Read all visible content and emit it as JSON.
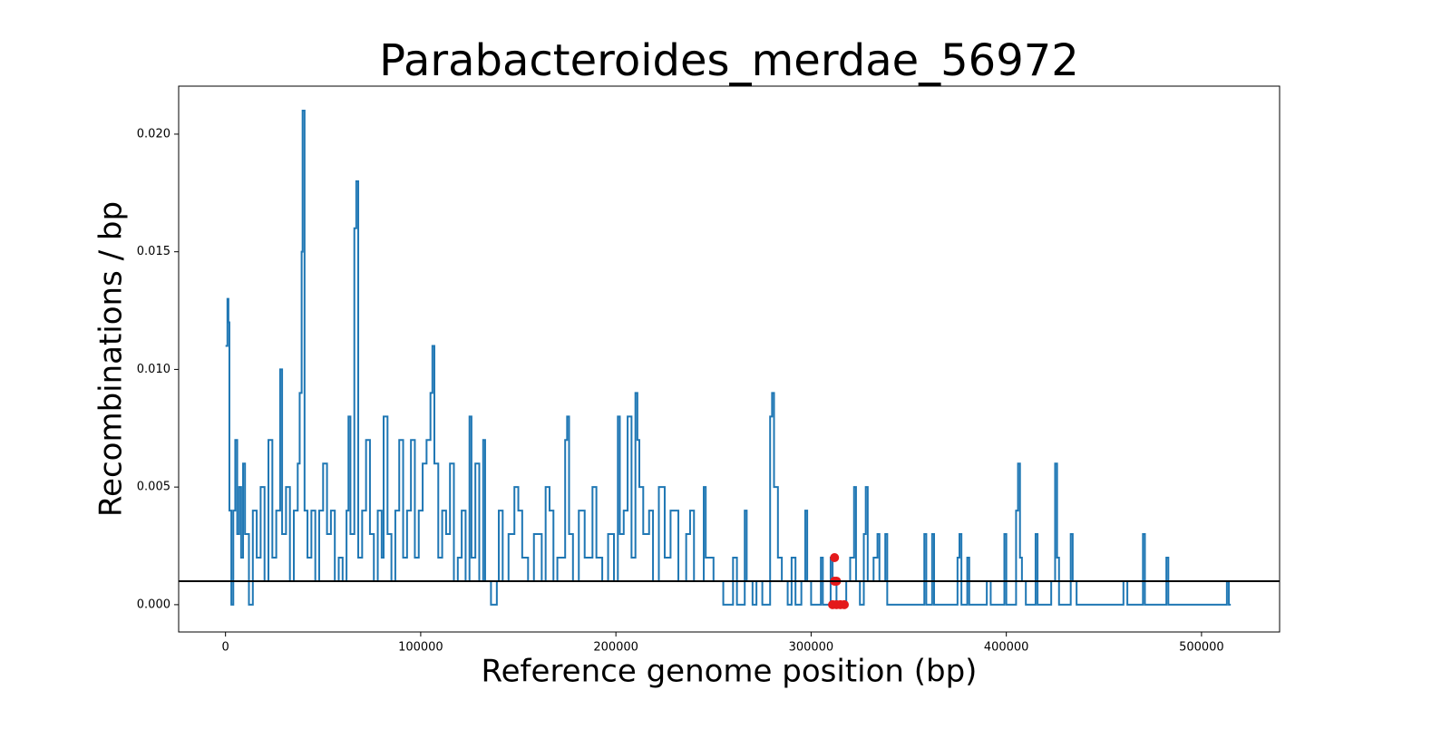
{
  "chart_data": {
    "type": "step",
    "title": "Parabacteroides_merdae_56972",
    "xlabel": "Reference genome position (bp)",
    "ylabel": "Recombinations / bp",
    "color": "#1f77b4",
    "x": [
      0,
      1000,
      1500,
      2000,
      3000,
      4000,
      5000,
      6000,
      7000,
      8000,
      9000,
      10000,
      12000,
      14000,
      16000,
      18000,
      20000,
      22000,
      24000,
      26000,
      28000,
      29000,
      31000,
      33000,
      35000,
      37000,
      38000,
      39000,
      39500,
      40500,
      42000,
      44000,
      46000,
      48000,
      50000,
      52000,
      54000,
      56000,
      58000,
      60000,
      62000,
      63000,
      64000,
      66000,
      67000,
      68000,
      70000,
      72000,
      74000,
      76000,
      78000,
      80000,
      81000,
      83000,
      85000,
      87000,
      89000,
      91000,
      93000,
      95000,
      97000,
      99000,
      101000,
      103000,
      105000,
      106000,
      107000,
      109000,
      111000,
      113000,
      115000,
      117000,
      119000,
      121000,
      123000,
      125000,
      126000,
      128000,
      130000,
      132000,
      133000,
      136000,
      139000,
      140000,
      142000,
      145000,
      148000,
      150000,
      152000,
      155000,
      158000,
      162000,
      164000,
      166000,
      168000,
      170000,
      174000,
      175000,
      176000,
      178000,
      181000,
      184000,
      188000,
      190000,
      193000,
      196000,
      199000,
      201000,
      202000,
      204000,
      206000,
      208000,
      210000,
      211000,
      212000,
      214000,
      217000,
      219000,
      222000,
      225000,
      228000,
      232000,
      236000,
      238000,
      240000,
      245000,
      246000,
      250000,
      255000,
      260000,
      262000,
      266000,
      267000,
      270000,
      272000,
      275000,
      279000,
      280000,
      281000,
      283000,
      285000,
      288000,
      290000,
      292000,
      295000,
      297000,
      298000,
      300000,
      305000,
      306000,
      310000,
      311000,
      313000,
      318000,
      320000,
      322000,
      323000,
      325000,
      327000,
      328000,
      329000,
      332000,
      334000,
      335000,
      338000,
      339000,
      358000,
      359000,
      362000,
      363000,
      375000,
      376000,
      377000,
      380000,
      381000,
      390000,
      392000,
      399000,
      400000,
      405000,
      406000,
      407000,
      408000,
      410000,
      415000,
      416000,
      423000,
      425000,
      426000,
      427000,
      433000,
      434000,
      436000,
      460000,
      462000,
      470000,
      471000,
      482000,
      483000,
      513000,
      514000,
      515000
    ],
    "values": [
      0.011,
      0.013,
      0.012,
      0.004,
      0,
      0.004,
      0.007,
      0.003,
      0.005,
      0.002,
      0.006,
      0.003,
      0,
      0.004,
      0.002,
      0.005,
      0.001,
      0.007,
      0.002,
      0.004,
      0.01,
      0.003,
      0.005,
      0.001,
      0.004,
      0.006,
      0.009,
      0.015,
      0.021,
      0.004,
      0.002,
      0.004,
      0.001,
      0.004,
      0.006,
      0.003,
      0.004,
      0.001,
      0.002,
      0.001,
      0.004,
      0.008,
      0.003,
      0.016,
      0.018,
      0.002,
      0.004,
      0.007,
      0.003,
      0.001,
      0.004,
      0.002,
      0.008,
      0.003,
      0.001,
      0.004,
      0.007,
      0.002,
      0.004,
      0.007,
      0.002,
      0.004,
      0.006,
      0.007,
      0.009,
      0.011,
      0.006,
      0.002,
      0.004,
      0.003,
      0.006,
      0.001,
      0.002,
      0.004,
      0.001,
      0.008,
      0.002,
      0.006,
      0.001,
      0.007,
      0.001,
      0,
      0.001,
      0.004,
      0.001,
      0.003,
      0.005,
      0.004,
      0.002,
      0.001,
      0.003,
      0.001,
      0.005,
      0.004,
      0.001,
      0.002,
      0.007,
      0.008,
      0.003,
      0.001,
      0.004,
      0.002,
      0.005,
      0.002,
      0.001,
      0.003,
      0.001,
      0.008,
      0.003,
      0.004,
      0.008,
      0.002,
      0.009,
      0.007,
      0.005,
      0.003,
      0.004,
      0.001,
      0.005,
      0.002,
      0.004,
      0.001,
      0.003,
      0.004,
      0.001,
      0.005,
      0.002,
      0.001,
      0,
      0.002,
      0,
      0.004,
      0.001,
      0,
      0.001,
      0,
      0.008,
      0.009,
      0.005,
      0.002,
      0.001,
      0,
      0.002,
      0,
      0.001,
      0.004,
      0.001,
      0,
      0.002,
      0,
      0.002,
      0.001,
      0,
      0.001,
      0.002,
      0.005,
      0.001,
      0,
      0.003,
      0.005,
      0.001,
      0.002,
      0.003,
      0.001,
      0.003,
      0,
      0.003,
      0,
      0.003,
      0,
      0.002,
      0.003,
      0,
      0.002,
      0,
      0.001,
      0,
      0.003,
      0,
      0.004,
      0.006,
      0.002,
      0.001,
      0,
      0.003,
      0,
      0.001,
      0.006,
      0.002,
      0,
      0.003,
      0.001,
      0,
      0.001,
      0,
      0.003,
      0,
      0.002,
      0,
      0.001,
      0,
      0
    ],
    "highlight": {
      "color": "#e41a1c",
      "x": [
        312000,
        313000,
        312000,
        311000,
        313000,
        315000,
        317000
      ],
      "values": [
        0.002,
        0.001,
        0.001,
        0,
        0,
        0,
        0
      ]
    },
    "threshold": 0.001,
    "xlim": [
      -24000,
      540000
    ],
    "ylim": [
      -0.00116,
      0.02204
    ],
    "xticks": [
      0,
      100000,
      200000,
      300000,
      400000,
      500000
    ],
    "yticks": [
      {
        "value": 0,
        "label": "0.000"
      },
      {
        "value": 0.005,
        "label": "0.005"
      },
      {
        "value": 0.01,
        "label": "0.010"
      },
      {
        "value": 0.015,
        "label": "0.015"
      },
      {
        "value": 0.02,
        "label": "0.020"
      }
    ]
  }
}
